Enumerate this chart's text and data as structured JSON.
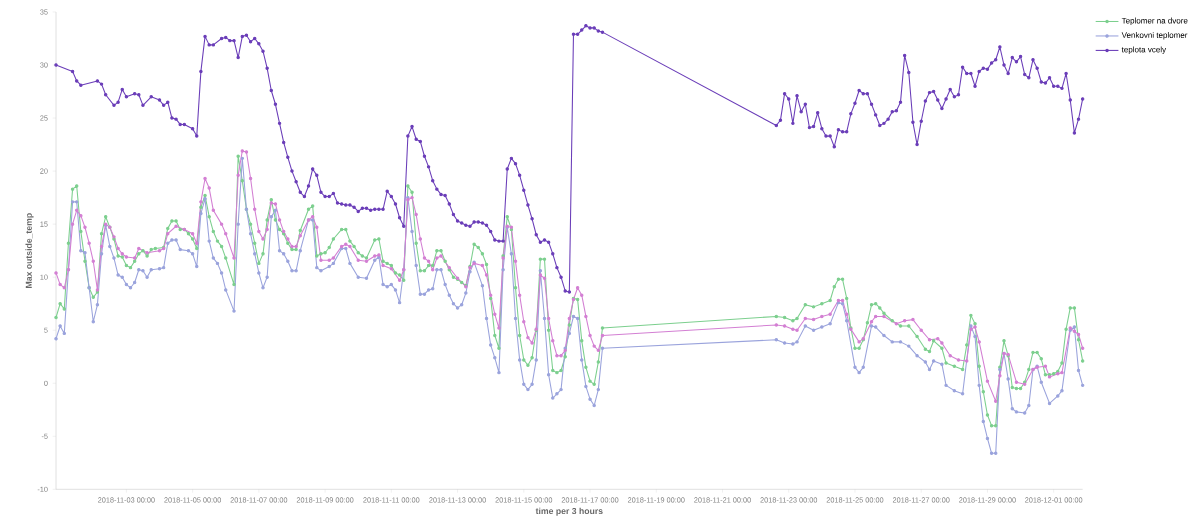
{
  "chart_data": {
    "type": "line",
    "xlabel": "time per 3 hours",
    "ylabel": "Max outside_temp",
    "xlim": [
      "2018-10-31T21:00",
      "2018-12-01T21:00"
    ],
    "ylim": [
      -10,
      35
    ],
    "xticks": [
      {
        "value": "2018-11-03",
        "label": "2018-11-03 00:00"
      },
      {
        "value": "2018-11-05",
        "label": "2018-11-05 00:00"
      },
      {
        "value": "2018-11-07",
        "label": "2018-11-07 00:00"
      },
      {
        "value": "2018-11-09",
        "label": "2018-11-09 00:00"
      },
      {
        "value": "2018-11-11",
        "label": "2018-11-11 00:00"
      },
      {
        "value": "2018-11-13",
        "label": "2018-11-13 00:00"
      },
      {
        "value": "2018-11-15",
        "label": "2018-11-15 00:00"
      },
      {
        "value": "2018-11-17",
        "label": "2018-11-17 00:00"
      },
      {
        "value": "2018-11-19",
        "label": "2018-11-19 00:00"
      },
      {
        "value": "2018-11-21",
        "label": "2018-11-21 00:00"
      },
      {
        "value": "2018-11-23",
        "label": "2018-11-23 00:00"
      },
      {
        "value": "2018-11-25",
        "label": "2018-11-25 00:00"
      },
      {
        "value": "2018-11-27",
        "label": "2018-11-27 00:00"
      },
      {
        "value": "2018-11-29",
        "label": "2018-11-29 00:00"
      },
      {
        "value": "2018-12-01",
        "label": "2018-12-01 00:00"
      }
    ],
    "yticks": [
      -10,
      -5,
      0,
      5,
      10,
      15,
      20,
      25,
      30,
      35
    ],
    "legend": "top right",
    "marker": "circle",
    "line_style": "solid",
    "series": [
      {
        "name": "Teplomer na dvore",
        "color": "#7ccf8e",
        "x": [
          "2018-10-31T21:00",
          "2018-11-01T00:00",
          "2018-11-01T03:00",
          "2018-11-01T06:00",
          "2018-11-01T09:00",
          "2018-11-01T12:00",
          "2018-11-01T15:00",
          "2018-11-01T18:00",
          "2018-11-01T21:00",
          "2018-11-02T00:00",
          "2018-11-02T03:00",
          "2018-11-02T06:00",
          "2018-11-02T09:00",
          "2018-11-02T12:00",
          "2018-11-02T15:00",
          "2018-11-02T18:00",
          "2018-11-02T21:00",
          "2018-11-03T00:00",
          "2018-11-03T03:00",
          "2018-11-03T06:00",
          "2018-11-03T09:00",
          "2018-11-03T12:00",
          "2018-11-03T15:00",
          "2018-11-03T18:00",
          "2018-11-03T21:00",
          "2018-11-04T03:00",
          "2018-11-04T06:00",
          "2018-11-04T09:00",
          "2018-11-04T12:00",
          "2018-11-04T15:00",
          "2018-11-04T18:00",
          "2018-11-04T21:00",
          "2018-11-05T00:00",
          "2018-11-05T03:00",
          "2018-11-05T06:00",
          "2018-11-05T09:00",
          "2018-11-05T12:00",
          "2018-11-05T15:00",
          "2018-11-05T18:00",
          "2018-11-05T21:00",
          "2018-11-06T00:00",
          "2018-11-06T06:00",
          "2018-11-06T09:00",
          "2018-11-06T12:00",
          "2018-11-06T15:00",
          "2018-11-06T18:00",
          "2018-11-06T21:00",
          "2018-11-07T00:00",
          "2018-11-07T03:00",
          "2018-11-07T06:00",
          "2018-11-07T09:00",
          "2018-11-07T12:00",
          "2018-11-07T15:00",
          "2018-11-07T18:00",
          "2018-11-07T21:00",
          "2018-11-08T00:00",
          "2018-11-08T03:00",
          "2018-11-08T06:00",
          "2018-11-08T12:00",
          "2018-11-08T15:00",
          "2018-11-08T18:00",
          "2018-11-08T21:00",
          "2018-11-09T00:00",
          "2018-11-09T03:00",
          "2018-11-09T06:00",
          "2018-11-09T12:00",
          "2018-11-09T15:00",
          "2018-11-09T18:00",
          "2018-11-09T21:00",
          "2018-11-10T00:00",
          "2018-11-10T03:00",
          "2018-11-10T06:00",
          "2018-11-10T12:00",
          "2018-11-10T15:00",
          "2018-11-10T18:00",
          "2018-11-10T21:00",
          "2018-11-11T00:00",
          "2018-11-11T03:00",
          "2018-11-11T06:00",
          "2018-11-11T09:00",
          "2018-11-11T12:00",
          "2018-11-11T15:00",
          "2018-11-11T18:00",
          "2018-11-11T21:00",
          "2018-11-12T00:00",
          "2018-11-12T03:00",
          "2018-11-12T06:00",
          "2018-11-12T09:00",
          "2018-11-12T12:00",
          "2018-11-12T15:00",
          "2018-11-12T18:00",
          "2018-11-12T21:00",
          "2018-11-13T00:00",
          "2018-11-13T03:00",
          "2018-11-13T06:00",
          "2018-11-13T09:00",
          "2018-11-13T12:00",
          "2018-11-13T15:00",
          "2018-11-13T18:00",
          "2018-11-13T21:00",
          "2018-11-14T00:00",
          "2018-11-14T03:00",
          "2018-11-14T06:00",
          "2018-11-14T09:00",
          "2018-11-14T12:00",
          "2018-11-14T15:00",
          "2018-11-14T18:00",
          "2018-11-14T21:00",
          "2018-11-15T00:00",
          "2018-11-15T03:00",
          "2018-11-15T06:00",
          "2018-11-15T09:00",
          "2018-11-15T12:00",
          "2018-11-15T15:00",
          "2018-11-15T18:00",
          "2018-11-15T21:00",
          "2018-11-16T00:00",
          "2018-11-16T03:00",
          "2018-11-16T06:00",
          "2018-11-16T09:00",
          "2018-11-16T12:00",
          "2018-11-16T15:00",
          "2018-11-16T18:00",
          "2018-11-16T21:00",
          "2018-11-17T00:00",
          "2018-11-17T03:00",
          "2018-11-17T06:00",
          "2018-11-17T09:00",
          "2018-11-22T15:00",
          "2018-11-22T21:00",
          "2018-11-23T03:00",
          "2018-11-23T06:00",
          "2018-11-23T12:00",
          "2018-11-23T18:00",
          "2018-11-24T00:00",
          "2018-11-24T06:00",
          "2018-11-24T09:00",
          "2018-11-24T12:00",
          "2018-11-24T15:00",
          "2018-11-24T18:00",
          "2018-11-24T21:00",
          "2018-11-25T00:00",
          "2018-11-25T03:00",
          "2018-11-25T06:00",
          "2018-11-25T09:00",
          "2018-11-25T12:00",
          "2018-11-25T15:00",
          "2018-11-25T18:00",
          "2018-11-25T21:00",
          "2018-11-26T03:00",
          "2018-11-26T09:00",
          "2018-11-26T15:00",
          "2018-11-26T21:00",
          "2018-11-27T03:00",
          "2018-11-27T06:00",
          "2018-11-27T09:00",
          "2018-11-27T15:00",
          "2018-11-27T18:00",
          "2018-11-28T00:00",
          "2018-11-28T06:00",
          "2018-11-28T09:00",
          "2018-11-28T12:00",
          "2018-11-28T15:00",
          "2018-11-28T18:00",
          "2018-11-28T21:00",
          "2018-11-29T00:00",
          "2018-11-29T03:00",
          "2018-11-29T06:00",
          "2018-11-29T09:00",
          "2018-11-29T12:00",
          "2018-11-29T15:00",
          "2018-11-29T18:00",
          "2018-11-29T21:00",
          "2018-11-30T00:00",
          "2018-11-30T03:00",
          "2018-11-30T06:00",
          "2018-11-30T09:00",
          "2018-11-30T12:00",
          "2018-11-30T15:00",
          "2018-11-30T18:00",
          "2018-11-30T21:00",
          "2018-12-01T00:00",
          "2018-12-01T03:00",
          "2018-12-01T06:00",
          "2018-12-01T09:00",
          "2018-12-01T12:00",
          "2018-12-01T15:00",
          "2018-12-01T18:00",
          "2018-12-01T21:00"
        ],
        "values": [
          6.2,
          7.5,
          7.0,
          13.2,
          18.3,
          18.6,
          14.3,
          11.5,
          9.0,
          8.1,
          8.6,
          14.1,
          15.7,
          14.7,
          13.6,
          12.0,
          11.9,
          11.1,
          10.9,
          11.5,
          12.2,
          12.5,
          12.0,
          12.6,
          12.7,
          12.8,
          14.6,
          15.3,
          15.3,
          14.5,
          14.5,
          14.1,
          13.6,
          12.7,
          16.6,
          17.7,
          15.7,
          14.3,
          13.4,
          12.9,
          11.8,
          9.3,
          21.4,
          19.1,
          16.4,
          15.0,
          13.2,
          11.3,
          12.2,
          15.4,
          17.3,
          15.4,
          14.5,
          14.1,
          13.2,
          12.6,
          12.6,
          14.4,
          16.4,
          16.7,
          12.0,
          12.2,
          12.3,
          12.8,
          13.6,
          14.5,
          14.5,
          13.4,
          12.9,
          12.3,
          12.0,
          11.8,
          13.5,
          13.6,
          11.5,
          11.3,
          11.1,
          10.4,
          10.2,
          9.7,
          18.6,
          18.0,
          13.2,
          10.6,
          10.6,
          11.1,
          11.1,
          12.5,
          12.5,
          11.5,
          10.7,
          10.0,
          9.8,
          9.5,
          9.2,
          11.0,
          13.1,
          12.8,
          12.2,
          11.2,
          8.0,
          4.5,
          3.3,
          12.0,
          15.7,
          14.5,
          9.0,
          4.5,
          2.2,
          1.7,
          2.4,
          5.0,
          11.7,
          11.7,
          5.0,
          1.2,
          1.0,
          1.2,
          2.5,
          5.5,
          8.0,
          7.9,
          4.0,
          1.5,
          0.2,
          -0.1,
          2.0,
          5.2,
          6.3,
          6.2,
          5.9,
          6.1,
          7.4,
          7.2,
          7.5,
          7.8,
          9.1,
          9.8,
          9.8,
          8.0,
          5.2,
          3.3,
          3.3,
          4.1,
          5.7,
          7.4,
          7.5,
          7.1,
          6.6,
          5.9,
          5.4,
          5.4,
          4.4,
          3.2,
          3.0,
          4.0,
          3.3,
          1.9,
          1.6,
          1.3,
          3.6,
          6.4,
          5.6,
          1.6,
          -0.8,
          -3.0,
          -4.0,
          -4.0,
          1.5,
          4.0,
          2.6,
          -0.4,
          -0.5,
          -0.5,
          0.1,
          1.3,
          2.9,
          2.9,
          2.3,
          0.8,
          0.8,
          0.9,
          1.1,
          1.9,
          5.1,
          7.1,
          7.1,
          4.1,
          2.1
        ]
      },
      {
        "name": "Venkovni teplomer",
        "color": "#9aa3dc",
        "x": [
          "2018-10-31T21:00",
          "2018-11-01T00:00",
          "2018-11-01T03:00",
          "2018-11-01T06:00",
          "2018-11-01T09:00",
          "2018-11-01T12:00",
          "2018-11-01T15:00",
          "2018-11-01T18:00",
          "2018-11-01T21:00",
          "2018-11-02T00:00",
          "2018-11-02T03:00",
          "2018-11-02T06:00",
          "2018-11-02T09:00",
          "2018-11-02T12:00",
          "2018-11-02T15:00",
          "2018-11-02T18:00",
          "2018-11-02T21:00",
          "2018-11-03T00:00",
          "2018-11-03T03:00",
          "2018-11-03T06:00",
          "2018-11-03T09:00",
          "2018-11-03T12:00",
          "2018-11-03T15:00",
          "2018-11-03T18:00",
          "2018-11-04T00:00",
          "2018-11-04T03:00",
          "2018-11-04T06:00",
          "2018-11-04T09:00",
          "2018-11-04T12:00",
          "2018-11-04T15:00",
          "2018-11-04T21:00",
          "2018-11-05T00:00",
          "2018-11-05T03:00",
          "2018-11-05T06:00",
          "2018-11-05T09:00",
          "2018-11-05T12:00",
          "2018-11-05T15:00",
          "2018-11-05T18:00",
          "2018-11-05T21:00",
          "2018-11-06T00:00",
          "2018-11-06T06:00",
          "2018-11-06T09:00",
          "2018-11-06T12:00",
          "2018-11-06T15:00",
          "2018-11-06T18:00",
          "2018-11-06T21:00",
          "2018-11-07T00:00",
          "2018-11-07T03:00",
          "2018-11-07T06:00",
          "2018-11-07T09:00",
          "2018-11-07T12:00",
          "2018-11-07T15:00",
          "2018-11-07T18:00",
          "2018-11-07T21:00",
          "2018-11-08T00:00",
          "2018-11-08T03:00",
          "2018-11-08T06:00",
          "2018-11-08T12:00",
          "2018-11-08T15:00",
          "2018-11-08T18:00",
          "2018-11-08T21:00",
          "2018-11-09T03:00",
          "2018-11-09T06:00",
          "2018-11-09T12:00",
          "2018-11-09T15:00",
          "2018-11-09T18:00",
          "2018-11-10T00:00",
          "2018-11-10T06:00",
          "2018-11-10T12:00",
          "2018-11-10T15:00",
          "2018-11-10T18:00",
          "2018-11-10T21:00",
          "2018-11-11T00:00",
          "2018-11-11T03:00",
          "2018-11-11T06:00",
          "2018-11-11T09:00",
          "2018-11-11T12:00",
          "2018-11-11T15:00",
          "2018-11-11T18:00",
          "2018-11-11T21:00",
          "2018-11-12T00:00",
          "2018-11-12T03:00",
          "2018-11-12T06:00",
          "2018-11-12T09:00",
          "2018-11-12T12:00",
          "2018-11-12T15:00",
          "2018-11-12T18:00",
          "2018-11-12T21:00",
          "2018-11-13T00:00",
          "2018-11-13T03:00",
          "2018-11-13T06:00",
          "2018-11-13T09:00",
          "2018-11-13T12:00",
          "2018-11-13T18:00",
          "2018-11-13T21:00",
          "2018-11-14T00:00",
          "2018-11-14T03:00",
          "2018-11-14T06:00",
          "2018-11-14T09:00",
          "2018-11-14T12:00",
          "2018-11-14T15:00",
          "2018-11-14T18:00",
          "2018-11-14T21:00",
          "2018-11-15T00:00",
          "2018-11-15T03:00",
          "2018-11-15T06:00",
          "2018-11-15T09:00",
          "2018-11-15T12:00",
          "2018-11-15T15:00",
          "2018-11-15T18:00",
          "2018-11-15T21:00",
          "2018-11-16T00:00",
          "2018-11-16T03:00",
          "2018-11-16T06:00",
          "2018-11-16T09:00",
          "2018-11-16T12:00",
          "2018-11-16T15:00",
          "2018-11-16T18:00",
          "2018-11-16T21:00",
          "2018-11-17T00:00",
          "2018-11-17T03:00",
          "2018-11-17T06:00",
          "2018-11-17T09:00",
          "2018-11-22T15:00",
          "2018-11-22T21:00",
          "2018-11-23T03:00",
          "2018-11-23T06:00",
          "2018-11-23T12:00",
          "2018-11-23T18:00",
          "2018-11-24T00:00",
          "2018-11-24T06:00",
          "2018-11-24T12:00",
          "2018-11-24T15:00",
          "2018-11-24T18:00",
          "2018-11-25T00:00",
          "2018-11-25T03:00",
          "2018-11-25T06:00",
          "2018-11-25T12:00",
          "2018-11-25T15:00",
          "2018-11-25T21:00",
          "2018-11-26T03:00",
          "2018-11-26T09:00",
          "2018-11-26T15:00",
          "2018-11-26T21:00",
          "2018-11-27T03:00",
          "2018-11-27T06:00",
          "2018-11-27T09:00",
          "2018-11-27T15:00",
          "2018-11-27T18:00",
          "2018-11-28T00:00",
          "2018-11-28T06:00",
          "2018-11-28T12:00",
          "2018-11-28T15:00",
          "2018-11-28T18:00",
          "2018-11-28T21:00",
          "2018-11-29T00:00",
          "2018-11-29T03:00",
          "2018-11-29T06:00",
          "2018-11-29T09:00",
          "2018-11-29T12:00",
          "2018-11-29T15:00",
          "2018-11-29T18:00",
          "2018-11-29T21:00",
          "2018-11-30T03:00",
          "2018-11-30T06:00",
          "2018-11-30T09:00",
          "2018-11-30T12:00",
          "2018-11-30T15:00",
          "2018-11-30T21:00",
          "2018-12-01T03:00",
          "2018-12-01T06:00",
          "2018-12-01T12:00",
          "2018-12-01T15:00",
          "2018-12-01T18:00",
          "2018-12-01T21:00"
        ],
        "values": [
          4.2,
          5.4,
          4.7,
          10.7,
          17.1,
          17.1,
          12.5,
          12.3,
          9.0,
          5.8,
          7.4,
          12.2,
          14.9,
          12.9,
          11.8,
          10.2,
          10.0,
          9.3,
          9.0,
          9.5,
          10.7,
          10.6,
          10.0,
          10.7,
          10.8,
          10.9,
          13.2,
          13.5,
          13.5,
          12.6,
          12.5,
          12.2,
          11.0,
          16.0,
          17.4,
          13.4,
          11.8,
          11.3,
          10.4,
          8.8,
          6.8,
          15.0,
          21.2,
          16.4,
          14.1,
          12.2,
          10.4,
          9.0,
          10.0,
          15.7,
          16.3,
          12.5,
          12.2,
          11.5,
          10.6,
          10.6,
          12.5,
          15.4,
          15.4,
          10.9,
          10.6,
          11.0,
          11.3,
          12.7,
          12.7,
          11.3,
          10.0,
          9.9,
          11.6,
          11.9,
          9.3,
          9.1,
          9.3,
          8.8,
          7.6,
          10.7,
          17.5,
          14.3,
          11.1,
          8.4,
          8.4,
          8.8,
          8.9,
          10.7,
          10.7,
          9.3,
          8.3,
          7.5,
          7.1,
          7.4,
          8.5,
          10.5,
          11.4,
          9.2,
          6.1,
          3.6,
          2.4,
          1.0,
          10.7,
          14.7,
          12.2,
          6.1,
          2.2,
          -0.1,
          -0.6,
          -0.1,
          2.2,
          10.6,
          6.1,
          0.8,
          -1.4,
          -1.0,
          -0.6,
          3.3,
          4.7,
          6.3,
          6.1,
          2.2,
          -0.3,
          -1.5,
          -2.1,
          -0.6,
          3.3,
          4.1,
          3.8,
          3.7,
          3.9,
          5.4,
          5.0,
          5.3,
          5.6,
          7.6,
          7.5,
          5.9,
          1.5,
          1.0,
          1.5,
          5.4,
          5.3,
          4.5,
          3.9,
          3.9,
          3.5,
          2.6,
          2.0,
          1.3,
          2.1,
          1.8,
          -0.2,
          -0.7,
          -1.0,
          5.4,
          4.4,
          -0.2,
          -3.6,
          -5.2,
          -6.6,
          -6.6,
          1.3,
          2.8,
          0.4,
          -2.4,
          -2.7,
          -2.8,
          -2.1,
          1.3,
          1.6,
          0.1,
          -1.9,
          -1.2,
          -0.7,
          5.0,
          5.3,
          1.2,
          -0.2
        ]
      },
      {
        "name": "teplota vcely",
        "color": "#6a3db8",
        "x": [
          "2018-10-31T21:00",
          "2018-11-01T09:00",
          "2018-11-01T12:00",
          "2018-11-01T15:00",
          "2018-11-02T03:00",
          "2018-11-02T06:00",
          "2018-11-02T09:00",
          "2018-11-02T15:00",
          "2018-11-02T18:00",
          "2018-11-02T21:00",
          "2018-11-03T00:00",
          "2018-11-03T06:00",
          "2018-11-03T09:00",
          "2018-11-03T12:00",
          "2018-11-03T18:00",
          "2018-11-04T00:00",
          "2018-11-04T03:00",
          "2018-11-04T06:00",
          "2018-11-04T09:00",
          "2018-11-04T12:00",
          "2018-11-04T15:00",
          "2018-11-04T18:00",
          "2018-11-05T00:00",
          "2018-11-05T03:00",
          "2018-11-05T06:00",
          "2018-11-05T09:00",
          "2018-11-05T12:00",
          "2018-11-05T15:00",
          "2018-11-05T21:00",
          "2018-11-06T00:00",
          "2018-11-06T03:00",
          "2018-11-06T06:00",
          "2018-11-06T09:00",
          "2018-11-06T12:00",
          "2018-11-06T15:00",
          "2018-11-06T18:00",
          "2018-11-06T21:00",
          "2018-11-07T00:00",
          "2018-11-07T03:00",
          "2018-11-07T06:00",
          "2018-11-07T09:00",
          "2018-11-07T12:00",
          "2018-11-07T15:00",
          "2018-11-07T18:00",
          "2018-11-07T21:00",
          "2018-11-08T00:00",
          "2018-11-08T03:00",
          "2018-11-08T06:00",
          "2018-11-08T09:00",
          "2018-11-08T12:00",
          "2018-11-08T15:00",
          "2018-11-08T18:00",
          "2018-11-08T21:00",
          "2018-11-09T00:00",
          "2018-11-09T03:00",
          "2018-11-09T06:00",
          "2018-11-09T09:00",
          "2018-11-09T12:00",
          "2018-11-09T15:00",
          "2018-11-09T18:00",
          "2018-11-09T21:00",
          "2018-11-10T00:00",
          "2018-11-10T03:00",
          "2018-11-10T06:00",
          "2018-11-10T09:00",
          "2018-11-10T12:00",
          "2018-11-10T15:00",
          "2018-11-10T18:00",
          "2018-11-10T21:00",
          "2018-11-11T00:00",
          "2018-11-11T03:00",
          "2018-11-11T06:00",
          "2018-11-11T09:00",
          "2018-11-11T12:00",
          "2018-11-11T15:00",
          "2018-11-11T18:00",
          "2018-11-11T21:00",
          "2018-11-12T00:00",
          "2018-11-12T03:00",
          "2018-11-12T06:00",
          "2018-11-12T09:00",
          "2018-11-12T12:00",
          "2018-11-12T15:00",
          "2018-11-12T18:00",
          "2018-11-12T21:00",
          "2018-11-13T00:00",
          "2018-11-13T03:00",
          "2018-11-13T06:00",
          "2018-11-13T09:00",
          "2018-11-13T12:00",
          "2018-11-13T15:00",
          "2018-11-13T18:00",
          "2018-11-13T21:00",
          "2018-11-14T00:00",
          "2018-11-14T03:00",
          "2018-11-14T06:00",
          "2018-11-14T09:00",
          "2018-11-14T12:00",
          "2018-11-14T15:00",
          "2018-11-14T18:00",
          "2018-11-14T21:00",
          "2018-11-15T00:00",
          "2018-11-15T03:00",
          "2018-11-15T06:00",
          "2018-11-15T09:00",
          "2018-11-15T12:00",
          "2018-11-15T15:00",
          "2018-11-15T18:00",
          "2018-11-15T21:00",
          "2018-11-16T00:00",
          "2018-11-16T03:00",
          "2018-11-16T06:00",
          "2018-11-16T09:00",
          "2018-11-16T12:00",
          "2018-11-16T15:00",
          "2018-11-16T18:00",
          "2018-11-16T21:00",
          "2018-11-17T00:00",
          "2018-11-17T03:00",
          "2018-11-17T06:00",
          "2018-11-17T09:00",
          "2018-11-22T15:00",
          "2018-11-22T18:00",
          "2018-11-22T21:00",
          "2018-11-23T00:00",
          "2018-11-23T03:00",
          "2018-11-23T06:00",
          "2018-11-23T09:00",
          "2018-11-23T12:00",
          "2018-11-23T15:00",
          "2018-11-23T18:00",
          "2018-11-23T21:00",
          "2018-11-24T00:00",
          "2018-11-24T03:00",
          "2018-11-24T06:00",
          "2018-11-24T09:00",
          "2018-11-24T12:00",
          "2018-11-24T15:00",
          "2018-11-24T18:00",
          "2018-11-24T21:00",
          "2018-11-25T00:00",
          "2018-11-25T03:00",
          "2018-11-25T06:00",
          "2018-11-25T09:00",
          "2018-11-25T12:00",
          "2018-11-25T15:00",
          "2018-11-25T18:00",
          "2018-11-25T21:00",
          "2018-11-26T00:00",
          "2018-11-26T03:00",
          "2018-11-26T06:00",
          "2018-11-26T09:00",
          "2018-11-26T12:00",
          "2018-11-26T15:00",
          "2018-11-26T18:00",
          "2018-11-26T21:00",
          "2018-11-27T00:00",
          "2018-11-27T03:00",
          "2018-11-27T06:00",
          "2018-11-27T09:00",
          "2018-11-27T12:00",
          "2018-11-27T15:00",
          "2018-11-27T18:00",
          "2018-11-27T21:00",
          "2018-11-28T00:00",
          "2018-11-28T03:00",
          "2018-11-28T06:00",
          "2018-11-28T09:00",
          "2018-11-28T12:00",
          "2018-11-28T15:00",
          "2018-11-28T18:00",
          "2018-11-28T21:00",
          "2018-11-29T00:00",
          "2018-11-29T03:00",
          "2018-11-29T06:00",
          "2018-11-29T09:00",
          "2018-11-29T12:00",
          "2018-11-29T15:00",
          "2018-11-29T18:00",
          "2018-11-29T21:00",
          "2018-11-30T00:00",
          "2018-11-30T03:00",
          "2018-11-30T06:00",
          "2018-11-30T09:00",
          "2018-11-30T12:00",
          "2018-11-30T15:00",
          "2018-11-30T18:00",
          "2018-11-30T21:00",
          "2018-12-01T00:00",
          "2018-12-01T03:00",
          "2018-12-01T06:00",
          "2018-12-01T09:00",
          "2018-12-01T12:00",
          "2018-12-01T15:00",
          "2018-12-01T18:00",
          "2018-12-01T21:00"
        ],
        "values": [
          30.0,
          29.4,
          28.5,
          28.1,
          28.5,
          28.2,
          27.2,
          26.2,
          26.5,
          27.7,
          27.0,
          27.3,
          27.2,
          26.2,
          27.0,
          26.7,
          26.2,
          26.5,
          25.0,
          24.9,
          24.4,
          24.4,
          24.0,
          23.3,
          29.4,
          32.7,
          31.9,
          31.9,
          32.5,
          32.6,
          32.3,
          32.3,
          30.7,
          32.7,
          32.8,
          32.2,
          32.5,
          32.0,
          31.3,
          29.7,
          27.6,
          26.3,
          24.5,
          22.7,
          21.3,
          20.0,
          19.0,
          18.0,
          17.6,
          18.6,
          20.2,
          19.6,
          18.0,
          17.6,
          17.6,
          17.9,
          17.0,
          16.9,
          16.8,
          16.8,
          16.6,
          16.2,
          16.5,
          16.5,
          16.3,
          16.4,
          16.4,
          16.4,
          18.1,
          17.6,
          16.9,
          15.6,
          14.8,
          23.3,
          24.2,
          23.0,
          22.8,
          21.4,
          20.4,
          19.1,
          18.3,
          17.8,
          17.7,
          16.9,
          15.9,
          15.3,
          15.1,
          14.9,
          14.8,
          15.2,
          15.2,
          15.1,
          14.9,
          14.3,
          13.5,
          13.4,
          13.4,
          20.2,
          21.2,
          20.7,
          19.6,
          18.2,
          16.8,
          15.5,
          14.0,
          13.3,
          13.5,
          13.3,
          12.2,
          10.9,
          10.0,
          8.7,
          8.6,
          32.9,
          32.9,
          33.3,
          33.7,
          33.5,
          33.5,
          33.2,
          33.1,
          24.3,
          24.8,
          27.3,
          26.8,
          24.5,
          27.1,
          25.6,
          26.3,
          24.1,
          24.2,
          25.5,
          24.0,
          23.3,
          23.3,
          22.3,
          23.9,
          23.7,
          23.7,
          25.4,
          26.4,
          27.6,
          27.3,
          27.3,
          26.3,
          25.3,
          24.3,
          24.5,
          24.9,
          25.6,
          25.7,
          26.5,
          30.9,
          29.3,
          24.6,
          22.5,
          24.7,
          26.6,
          27.4,
          27.5,
          26.7,
          25.9,
          26.8,
          27.7,
          27.0,
          27.2,
          29.8,
          29.2,
          29.2,
          28.0,
          29.4,
          29.7,
          29.6,
          30.2,
          30.5,
          31.7,
          30.0,
          29.2,
          30.7,
          30.3,
          30.8,
          29.1,
          28.8,
          30.5,
          29.7,
          28.4,
          28.3,
          28.8,
          28.0,
          28.0,
          27.8,
          29.2,
          26.7,
          23.6,
          24.9,
          26.8
        ]
      },
      {
        "color": "#d37fd3",
        "x": [
          "2018-10-31T21:00",
          "2018-11-01T00:00",
          "2018-11-01T03:00",
          "2018-11-01T06:00",
          "2018-11-01T09:00",
          "2018-11-01T12:00",
          "2018-11-01T15:00",
          "2018-11-01T18:00",
          "2018-11-01T21:00",
          "2018-11-02T00:00",
          "2018-11-02T03:00",
          "2018-11-02T06:00",
          "2018-11-02T09:00",
          "2018-11-02T12:00",
          "2018-11-02T15:00",
          "2018-11-02T18:00",
          "2018-11-02T21:00",
          "2018-11-03T00:00",
          "2018-11-03T06:00",
          "2018-11-03T09:00",
          "2018-11-03T15:00",
          "2018-11-04T00:00",
          "2018-11-04T03:00",
          "2018-11-04T06:00",
          "2018-11-04T12:00",
          "2018-11-04T18:00",
          "2018-11-05T00:00",
          "2018-11-05T03:00",
          "2018-11-05T06:00",
          "2018-11-05T09:00",
          "2018-11-05T12:00",
          "2018-11-05T15:00",
          "2018-11-05T21:00",
          "2018-11-06T00:00",
          "2018-11-06T06:00",
          "2018-11-06T09:00",
          "2018-11-06T12:00",
          "2018-11-06T15:00",
          "2018-11-06T18:00",
          "2018-11-06T21:00",
          "2018-11-07T00:00",
          "2018-11-07T03:00",
          "2018-11-07T06:00",
          "2018-11-07T09:00",
          "2018-11-07T12:00",
          "2018-11-07T15:00",
          "2018-11-07T18:00",
          "2018-11-07T21:00",
          "2018-11-08T00:00",
          "2018-11-08T03:00",
          "2018-11-08T06:00",
          "2018-11-08T12:00",
          "2018-11-08T15:00",
          "2018-11-08T18:00",
          "2018-11-08T21:00",
          "2018-11-09T03:00",
          "2018-11-09T06:00",
          "2018-11-09T12:00",
          "2018-11-09T15:00",
          "2018-11-09T18:00",
          "2018-11-10T00:00",
          "2018-11-10T06:00",
          "2018-11-10T12:00",
          "2018-11-10T15:00",
          "2018-11-10T18:00",
          "2018-11-11T00:00",
          "2018-11-11T06:00",
          "2018-11-11T09:00",
          "2018-11-11T12:00",
          "2018-11-11T15:00",
          "2018-11-11T18:00",
          "2018-11-11T21:00",
          "2018-11-12T00:00",
          "2018-11-12T03:00",
          "2018-11-12T06:00",
          "2018-11-12T09:00",
          "2018-11-12T12:00",
          "2018-11-12T18:00",
          "2018-11-13T00:00",
          "2018-11-13T06:00",
          "2018-11-13T09:00",
          "2018-11-13T12:00",
          "2018-11-13T18:00",
          "2018-11-13T21:00",
          "2018-11-14T00:00",
          "2018-11-14T03:00",
          "2018-11-14T06:00",
          "2018-11-14T09:00",
          "2018-11-14T12:00",
          "2018-11-14T15:00",
          "2018-11-14T18:00",
          "2018-11-14T21:00",
          "2018-11-15T00:00",
          "2018-11-15T03:00",
          "2018-11-15T06:00",
          "2018-11-15T09:00",
          "2018-11-15T12:00",
          "2018-11-15T15:00",
          "2018-11-15T18:00",
          "2018-11-15T21:00",
          "2018-11-16T00:00",
          "2018-11-16T03:00",
          "2018-11-16T06:00",
          "2018-11-16T09:00",
          "2018-11-16T12:00",
          "2018-11-16T15:00",
          "2018-11-16T18:00",
          "2018-11-16T21:00",
          "2018-11-17T00:00",
          "2018-11-17T03:00",
          "2018-11-17T06:00",
          "2018-11-17T09:00",
          "2018-11-22T15:00",
          "2018-11-22T21:00",
          "2018-11-23T03:00",
          "2018-11-23T06:00",
          "2018-11-23T12:00",
          "2018-11-23T18:00",
          "2018-11-24T00:00",
          "2018-11-24T06:00",
          "2018-11-24T12:00",
          "2018-11-24T15:00",
          "2018-11-24T18:00",
          "2018-11-24T21:00",
          "2018-11-25T03:00",
          "2018-11-25T06:00",
          "2018-11-25T12:00",
          "2018-11-25T15:00",
          "2018-11-25T21:00",
          "2018-11-26T06:00",
          "2018-11-26T12:00",
          "2018-11-26T18:00",
          "2018-11-27T00:00",
          "2018-11-27T06:00",
          "2018-11-27T12:00",
          "2018-11-27T15:00",
          "2018-11-27T21:00",
          "2018-11-28T03:00",
          "2018-11-28T09:00",
          "2018-11-28T12:00",
          "2018-11-28T15:00",
          "2018-11-28T18:00",
          "2018-11-29T00:00",
          "2018-11-29T06:00",
          "2018-11-29T09:00",
          "2018-11-29T12:00",
          "2018-11-29T15:00",
          "2018-11-29T21:00",
          "2018-11-30T03:00",
          "2018-11-30T09:00",
          "2018-11-30T12:00",
          "2018-11-30T18:00",
          "2018-11-30T21:00",
          "2018-12-01T03:00",
          "2018-12-01T06:00",
          "2018-12-01T12:00",
          "2018-12-01T15:00",
          "2018-12-01T18:00",
          "2018-12-01T21:00"
        ],
        "values": [
          10.4,
          9.3,
          9.0,
          10.7,
          15.0,
          16.3,
          15.8,
          14.7,
          13.2,
          11.5,
          8.8,
          12.9,
          15.0,
          14.7,
          13.8,
          12.7,
          12.2,
          11.9,
          11.8,
          12.7,
          12.3,
          12.5,
          12.7,
          14.1,
          14.8,
          14.5,
          14.1,
          13.2,
          17.1,
          19.3,
          18.4,
          16.3,
          15.0,
          14.1,
          11.8,
          19.6,
          21.9,
          21.8,
          19.3,
          16.4,
          14.3,
          13.6,
          14.5,
          17.0,
          16.9,
          15.4,
          14.3,
          13.6,
          12.9,
          12.9,
          13.9,
          15.4,
          15.7,
          14.7,
          11.6,
          11.6,
          11.8,
          12.9,
          13.1,
          12.9,
          11.6,
          11.5,
          12.0,
          12.1,
          11.1,
          10.8,
          9.7,
          10.7,
          17.3,
          17.5,
          15.9,
          13.6,
          11.8,
          11.5,
          10.7,
          11.8,
          12.0,
          10.9,
          9.9,
          9.1,
          10.9,
          11.3,
          11.1,
          10.2,
          8.3,
          6.5,
          5.2,
          11.8,
          14.8,
          14.7,
          11.5,
          8.3,
          5.8,
          4.3,
          3.8,
          5.1,
          10.2,
          9.9,
          6.1,
          4.0,
          2.6,
          2.6,
          3.1,
          6.1,
          7.9,
          9.0,
          8.3,
          6.3,
          4.5,
          3.5,
          3.1,
          4.5,
          5.5,
          5.4,
          5.1,
          5.0,
          6.1,
          6.0,
          6.3,
          6.5,
          7.8,
          7.8,
          6.5,
          5.1,
          3.9,
          4.2,
          5.8,
          6.3,
          6.3,
          5.6,
          5.9,
          6.0,
          5.0,
          4.1,
          4.2,
          3.8,
          2.6,
          2.2,
          2.1,
          5.1,
          5.3,
          3.9,
          0.2,
          -1.7,
          0.7,
          2.8,
          2.7,
          0.1,
          -0.1,
          1.3,
          1.5,
          1.6,
          0.6,
          0.9,
          1.0,
          5.2,
          4.9,
          4.6,
          3.3
        ]
      }
    ]
  }
}
